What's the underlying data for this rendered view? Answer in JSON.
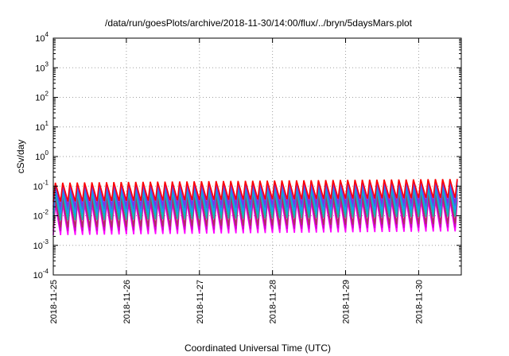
{
  "chart_data": {
    "type": "line",
    "title": "/data/run/goesPlots/archive/2018-11-30/14:00/flux/../bryn/5daysMars.plot",
    "xlabel": "Coordinated Universal Time (UTC)",
    "ylabel": "cSv/day",
    "yscale": "log",
    "ylim": [
      0.0001,
      10000
    ],
    "y_ticks": [
      {
        "value": 0.0001,
        "base": "10",
        "exp": "-4"
      },
      {
        "value": 0.001,
        "base": "10",
        "exp": "-3"
      },
      {
        "value": 0.01,
        "base": "10",
        "exp": "-2"
      },
      {
        "value": 0.1,
        "base": "10",
        "exp": "-1"
      },
      {
        "value": 1,
        "base": "10",
        "exp": "0"
      },
      {
        "value": 10,
        "base": "10",
        "exp": "1"
      },
      {
        "value": 100,
        "base": "10",
        "exp": "2"
      },
      {
        "value": 1000,
        "base": "10",
        "exp": "3"
      },
      {
        "value": 10000,
        "base": "10",
        "exp": "4"
      }
    ],
    "x_ticks": [
      "2018-11-25",
      "2018-11-26",
      "2018-11-27",
      "2018-11-28",
      "2018-11-29",
      "2018-11-30"
    ],
    "xlim": [
      "2018-11-25T00:00",
      "2018-11-30T14:00"
    ],
    "grid": true,
    "legend": "none",
    "sawtooth_cycles_per_day": 10,
    "series": [
      {
        "color": "#ff00ff",
        "peak": 0.025,
        "trough": 0.0022
      },
      {
        "color": "#cc00cc",
        "peak": 0.03,
        "trough": 0.003
      },
      {
        "color": "#b03060",
        "peak": 0.04,
        "trough": 0.004
      },
      {
        "color": "#20b2aa",
        "peak": 0.06,
        "trough": 0.007
      },
      {
        "color": "#00bfbf",
        "peak": 0.075,
        "trough": 0.009
      },
      {
        "color": "#1e90ff",
        "peak": 0.09,
        "trough": 0.012
      },
      {
        "color": "#4169e1",
        "peak": 0.11,
        "trough": 0.016
      },
      {
        "color": "#8a2be2",
        "peak": 0.12,
        "trough": 0.02
      },
      {
        "color": "#ff0000",
        "peak": 0.13,
        "trough": 0.03
      }
    ]
  }
}
